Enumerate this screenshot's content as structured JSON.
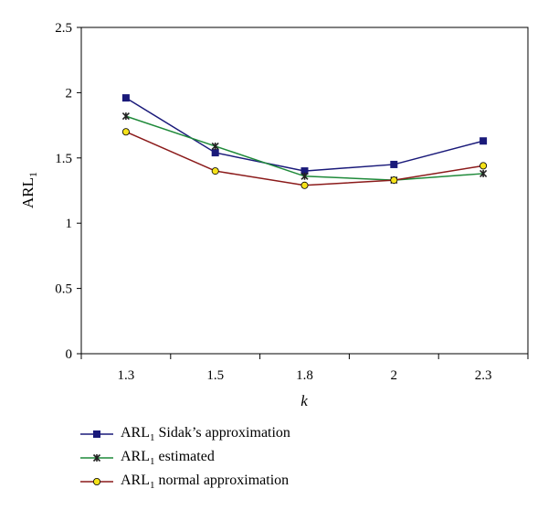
{
  "chart_data": {
    "type": "line",
    "categories": [
      "1.3",
      "1.5",
      "1.8",
      "2",
      "2.3"
    ],
    "ylabel": "ARL",
    "ylabel_subscript": "1",
    "xlabel": "k",
    "ylim": [
      0,
      2.5
    ],
    "yticks": [
      "0",
      "0.5",
      "1",
      "1.5",
      "2",
      "2.5"
    ],
    "grid": false,
    "legend_position": "bottom",
    "series": [
      {
        "name": "ARL1 Sidak's approximation",
        "label_main": "ARL",
        "label_sub": "1",
        "label_rest": " Sidak’s approximation",
        "color": "#1a1a7a",
        "marker": "square",
        "values": [
          1.96,
          1.54,
          1.4,
          1.45,
          1.63
        ]
      },
      {
        "name": "ARL1 estimated",
        "label_main": "ARL",
        "label_sub": "1",
        "label_rest": " estimated",
        "color": "#1f8a3a",
        "marker": "star",
        "values": [
          1.82,
          1.59,
          1.36,
          1.33,
          1.38
        ]
      },
      {
        "name": "ARL1 normal approximation",
        "label_main": "ARL",
        "label_sub": "1",
        "label_rest": " normal approximation",
        "color": "#8b1a1a",
        "marker": "circle",
        "marker_fill": "#f5e21a",
        "values": [
          1.7,
          1.4,
          1.29,
          1.33,
          1.44
        ]
      }
    ]
  }
}
